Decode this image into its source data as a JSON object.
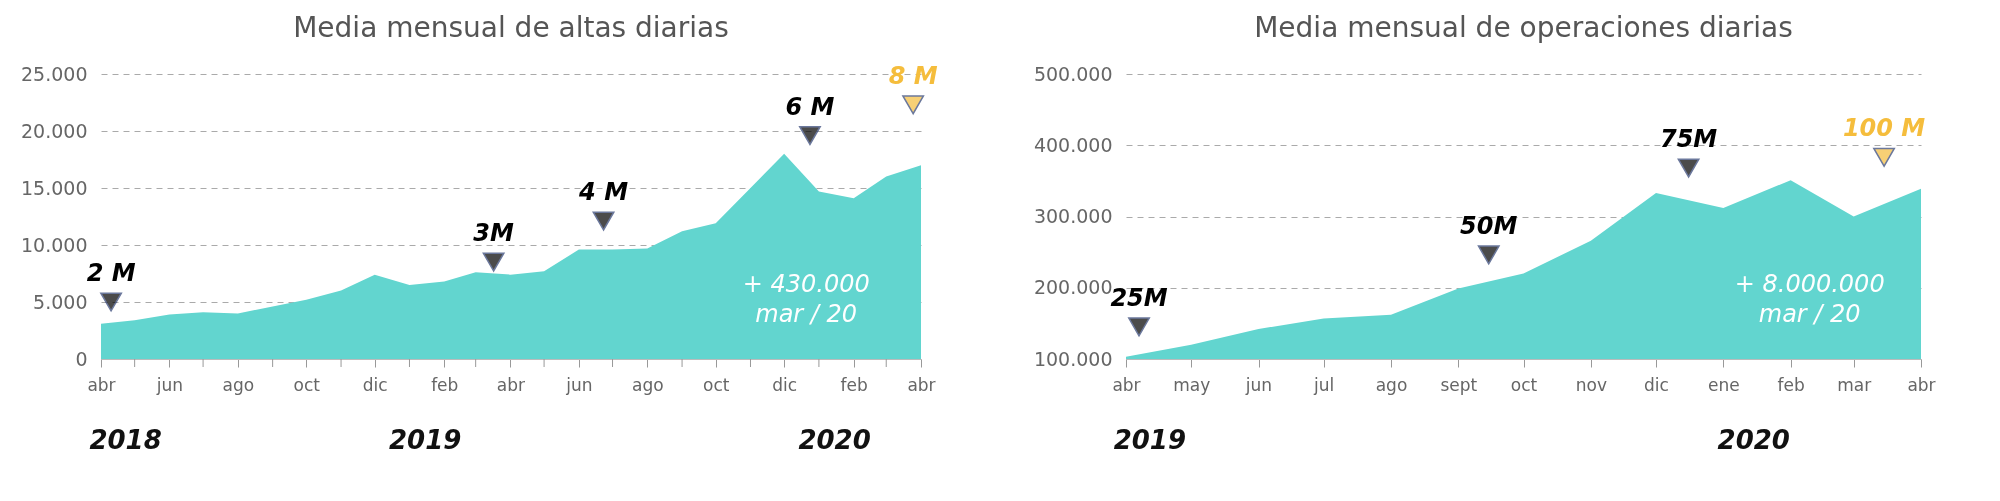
{
  "chart_data": [
    {
      "type": "area",
      "title": "Media mensual de altas diarias",
      "x": [
        "2018-04",
        "2018-05",
        "2018-06",
        "2018-07",
        "2018-08",
        "2018-09",
        "2018-10",
        "2018-11",
        "2018-12",
        "2019-01",
        "2019-02",
        "2019-03",
        "2019-04",
        "2019-05",
        "2019-06",
        "2019-07",
        "2019-08",
        "2019-09",
        "2019-10",
        "2019-11",
        "2019-12",
        "2020-01",
        "2020-02",
        "2020-03",
        "2020-04"
      ],
      "series": [
        {
          "color": "#62d5cf",
          "values": [
            3100,
            3400,
            3900,
            4100,
            4000,
            4600,
            5200,
            6000,
            7400,
            6500,
            6800,
            7600,
            7400,
            7700,
            9600,
            9600,
            9700,
            11200,
            11900,
            15000,
            18000,
            14700,
            14100,
            16000,
            17000
          ]
        },
        {
          "type": "scatter",
          "marker": "triangle",
          "x": [
            "2018-04-10",
            "2019-03-17",
            "2019-06-23",
            "2019-12-24",
            "2020-03-25"
          ],
          "values": [
            5000,
            8500,
            12100,
            19600,
            22300
          ],
          "colors": [
            "#000000",
            "#000000",
            "#000000",
            "#000000",
            "#f5bd3c"
          ]
        }
      ],
      "xlim": [
        "2018-04",
        "2020-04"
      ],
      "xticks": [
        {
          "value": "2018-04",
          "label": "abr"
        },
        {
          "value": "2018-05",
          "label": null
        },
        {
          "value": "2018-06",
          "label": "jun"
        },
        {
          "value": "2018-07",
          "label": null
        },
        {
          "value": "2018-08",
          "label": "ago"
        },
        {
          "value": "2018-09",
          "label": null
        },
        {
          "value": "2018-10",
          "label": "oct"
        },
        {
          "value": "2018-11",
          "label": null
        },
        {
          "value": "2018-12",
          "label": "dic"
        },
        {
          "value": "2019-01",
          "label": null
        },
        {
          "value": "2019-02",
          "label": "feb"
        },
        {
          "value": "2019-03",
          "label": null
        },
        {
          "value": "2019-04",
          "label": "abr"
        },
        {
          "value": "2019-05",
          "label": null
        },
        {
          "value": "2019-06",
          "label": "jun"
        },
        {
          "value": "2019-07",
          "label": null
        },
        {
          "value": "2019-08",
          "label": "ago"
        },
        {
          "value": "2019-09",
          "label": null
        },
        {
          "value": "2019-10",
          "label": "oct"
        },
        {
          "value": "2019-11",
          "label": null
        },
        {
          "value": "2019-12",
          "label": "dic"
        },
        {
          "value": "2020-01",
          "label": null
        },
        {
          "value": "2020-02",
          "label": "feb"
        },
        {
          "value": "2020-03",
          "label": null
        },
        {
          "value": "2020-04",
          "label": "abr"
        }
      ],
      "ylim": [
        0,
        25000
      ],
      "yticks": [
        0,
        {
          "value": 5000,
          "label": "5.000"
        },
        {
          "value": 10000,
          "label": "10.000"
        },
        {
          "value": 15000,
          "label": "15.000"
        },
        {
          "value": 20000,
          "label": "20.000"
        },
        {
          "value": 25000,
          "label": "25.000"
        }
      ],
      "grid": "y",
      "annotations": [
        "2018",
        "2019",
        "2020",
        {
          "text": "2 M",
          "x": "2018-04-10",
          "y": 5000
        },
        {
          "text": "3M",
          "x": "2019-03-17",
          "y": 8500
        },
        {
          "text": "4 M",
          "x": "2019-06-23",
          "y": 12100
        },
        {
          "text": "6 M",
          "x": "2019-12-24",
          "y": 19600
        },
        {
          "text": "8 M",
          "x": "2020-03-25",
          "y": 22300
        },
        "+ 430.000\nmar / 20"
      ]
    },
    {
      "type": "area",
      "title": "Media mensual de operaciones diarias",
      "x": [
        "2019-04",
        "2019-05",
        "2019-06",
        "2019-07",
        "2019-08",
        "2019-09",
        "2019-10",
        "2019-11",
        "2019-12",
        "2020-01",
        "2020-02",
        "2020-03",
        "2020-04"
      ],
      "series": [
        {
          "color": "#62d5cf",
          "values": [
            103000,
            120000,
            142000,
            157000,
            162000,
            199000,
            220000,
            266000,
            333000,
            312000,
            351000,
            300000,
            339000
          ]
        },
        {
          "type": "scatter",
          "marker": "triangle",
          "x": [
            "2019-04-07",
            "2019-09-15",
            "2019-12-16",
            "2020-03-15"
          ],
          "values": [
            145000,
            246000,
            368000,
            383000
          ],
          "colors": [
            "#000000",
            "#000000",
            "#000000",
            "#f5bd3c"
          ]
        }
      ],
      "xlim": [
        "2019-04",
        "2020-04"
      ],
      "xticks": [
        {
          "value": "2019-04",
          "label": "abr"
        },
        {
          "value": "2019-05",
          "label": "may"
        },
        {
          "value": "2019-06",
          "label": "jun"
        },
        {
          "value": "2019-07",
          "label": "jul"
        },
        {
          "value": "2019-08",
          "label": "ago"
        },
        {
          "value": "2019-09",
          "label": "sept"
        },
        {
          "value": "2019-10",
          "label": "oct"
        },
        {
          "value": "2019-11",
          "label": "nov"
        },
        {
          "value": "2019-12",
          "label": "dic"
        },
        {
          "value": "2020-01",
          "label": "ene"
        },
        {
          "value": "2020-02",
          "label": "feb"
        },
        {
          "value": "2020-03",
          "label": "mar"
        },
        {
          "value": "2020-04",
          "label": "abr"
        }
      ],
      "ylim": [
        100000,
        500000
      ],
      "yticks": [
        {
          "value": 100000,
          "label": "100.000"
        },
        {
          "value": 200000,
          "label": "200.000"
        },
        {
          "value": 300000,
          "label": "300.000"
        },
        {
          "value": 400000,
          "label": "400.000"
        },
        {
          "value": 500000,
          "label": "500.000"
        }
      ],
      "grid": "y",
      "annotations": [
        "2019",
        "2020",
        {
          "text": "25M",
          "x": "2019-04-07",
          "y": 145000
        },
        {
          "text": "50M",
          "x": "2019-09-15",
          "y": 246000
        },
        {
          "text": "75M",
          "x": "2019-12-16",
          "y": 368000
        },
        {
          "text": "100 M",
          "x": "2020-03-15",
          "y": 383000
        },
        "+ 8.000.000\nmar / 20"
      ]
    }
  ]
}
